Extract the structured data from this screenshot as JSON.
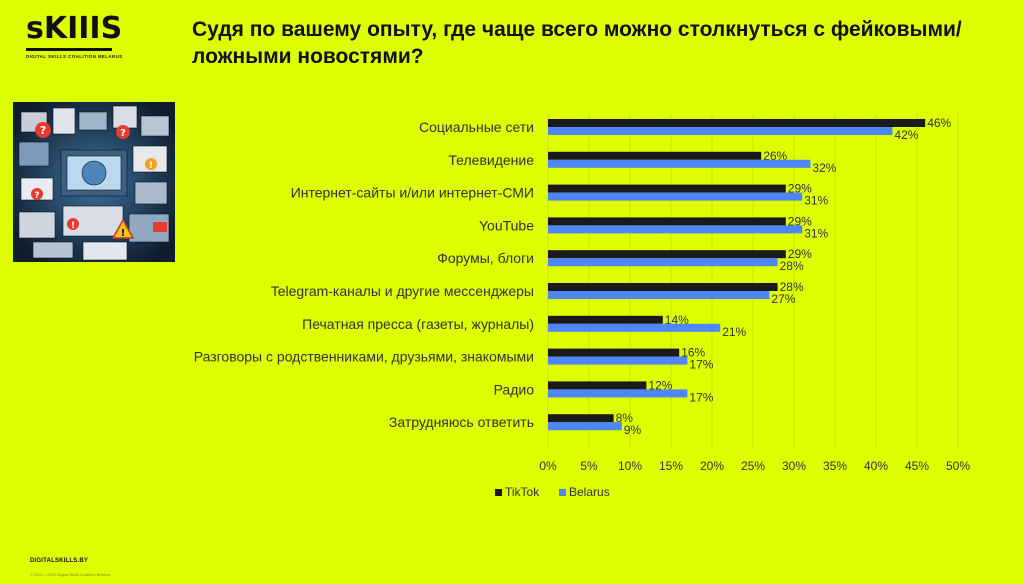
{
  "brand": {
    "logo_text": "sKIIIS",
    "tagline": "DIGITAL SKILLS COALITION BELARUS"
  },
  "title": "Судя по вашему опыту, где чаще всего можно столкнуться с фейковыми/ложными новостями?",
  "footer": {
    "site": "DIGITALSKILLS.BY",
    "copyright": "© 2021 – 2023 Digital Skills Coalition Belarus"
  },
  "colors": {
    "background": "#DDFF00",
    "tiktok": "#1a1a1a",
    "belarus": "#4f86f7",
    "grid": "#c9e600"
  },
  "chart_data": {
    "type": "bar",
    "orientation": "horizontal",
    "categories": [
      "Социальные сети",
      "Телевидение",
      "Интернет-сайты и/или интернет-СМИ",
      "YouTube",
      "Форумы, блоги",
      "Telegram-каналы и другие мессенджеры",
      "Печатная пресса (газеты, журналы)",
      "Разговоры с родственниками, друзьями, знакомыми",
      "Радио",
      "Затрудняюсь ответить"
    ],
    "series": [
      {
        "name": "TikTok",
        "values": [
          46,
          26,
          29,
          29,
          29,
          28,
          14,
          16,
          12,
          8
        ],
        "color": "#1a1a1a"
      },
      {
        "name": "Belarus",
        "values": [
          42,
          32,
          31,
          31,
          28,
          27,
          21,
          17,
          17,
          9
        ],
        "color": "#4f86f7"
      }
    ],
    "xlim": [
      0,
      50
    ],
    "xticks": [
      0,
      5,
      10,
      15,
      20,
      25,
      30,
      35,
      40,
      45,
      50
    ],
    "tick_suffix": "%",
    "value_suffix": "%",
    "grid": true,
    "legend": "bottom"
  }
}
